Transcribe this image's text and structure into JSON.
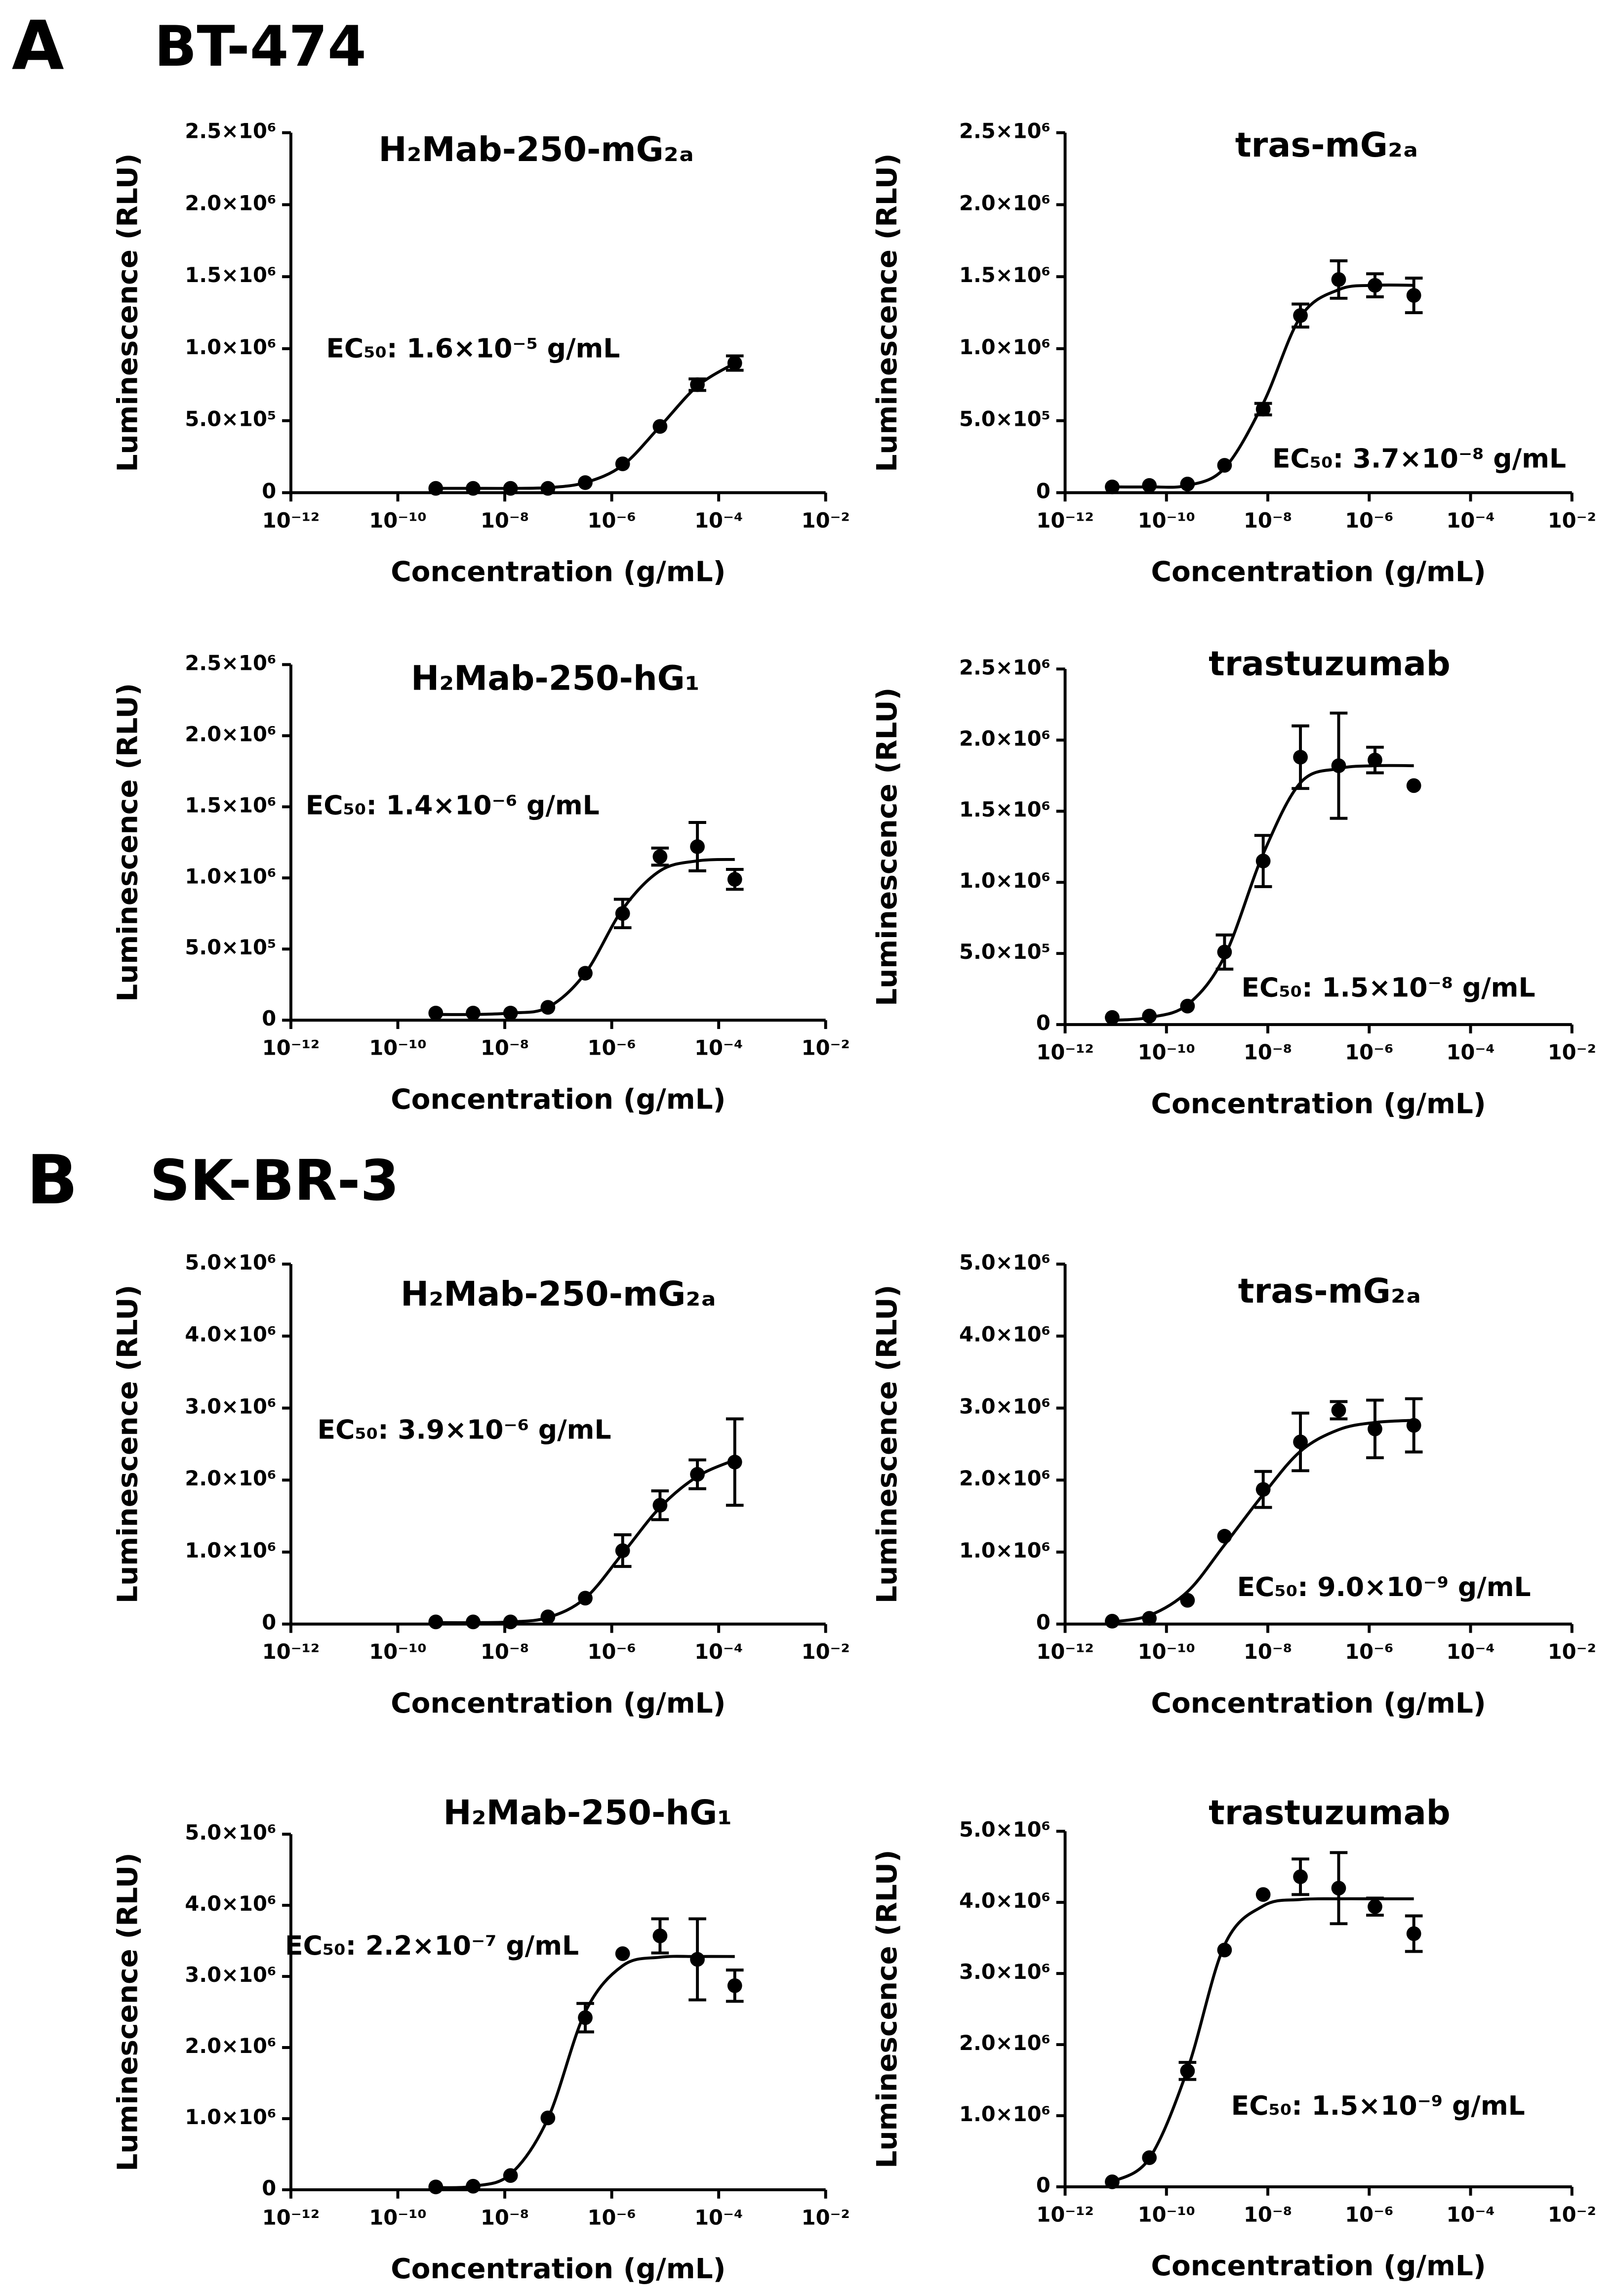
{
  "panels": [
    {
      "letter": "A",
      "title": "BT-474"
    },
    {
      "letter": "B",
      "title": "SK-BR-3"
    }
  ],
  "chart_data": [
    {
      "type": "scatter",
      "title": "H₂Mab-250-mG₂ₐ",
      "annotation": "EC₅₀: 1.6×10⁻⁵ g/mL",
      "xlabel": "Concentration (g/mL)",
      "ylabel": "Luminescence (RLU)",
      "xscale": "log",
      "color": "#000000",
      "x": [
        5.12e-10,
        2.56e-09,
        1.28e-08,
        6.4e-08,
        3.2e-07,
        1.6e-06,
        8e-06,
        4e-05,
        0.0002
      ],
      "values": [
        30000,
        30000,
        30000,
        30000,
        70000,
        200000,
        460000,
        750000,
        900000
      ],
      "errors": [
        0,
        0,
        0,
        0,
        0,
        0,
        0,
        40000,
        50000
      ],
      "fit": [
        30000,
        30000,
        30000,
        35000,
        70000,
        190000,
        460000,
        740000,
        900000
      ],
      "xlim": [
        1e-12,
        0.01
      ],
      "xticks": [
        {
          "value": 1e-12,
          "label": "10⁻¹²"
        },
        {
          "value": 1e-10,
          "label": "10⁻¹⁰"
        },
        {
          "value": 1e-08,
          "label": "10⁻⁸"
        },
        {
          "value": 1e-06,
          "label": "10⁻⁶"
        },
        {
          "value": 0.0001,
          "label": "10⁻⁴"
        },
        {
          "value": 0.01,
          "label": "10⁻²"
        }
      ],
      "ylim": [
        0,
        2500000
      ],
      "yticks": [
        0,
        {
          "value": 500000,
          "label": "5.0×10⁵"
        },
        {
          "value": 1000000,
          "label": "1.0×10⁶"
        },
        {
          "value": 1500000,
          "label": "1.5×10⁶"
        },
        {
          "value": 2000000,
          "label": "2.0×10⁶"
        },
        {
          "value": 2500000,
          "label": "2.5×10⁶"
        }
      ]
    },
    {
      "type": "scatter",
      "title": "tras-mG₂ₐ",
      "annotation": "EC₅₀: 3.7×10⁻⁸ g/mL",
      "xlabel": "Concentration (g/mL)",
      "ylabel": "Luminescence (RLU)",
      "xscale": "log",
      "color": "#000000",
      "x": [
        8.5e-12,
        4.6e-11,
        2.6e-10,
        1.4e-09,
        8.1e-09,
        4.4e-08,
        2.5e-07,
        1.3e-06,
        7.6e-06
      ],
      "values": [
        40000,
        50000,
        60000,
        190000,
        580000,
        1230000,
        1480000,
        1440000,
        1370000
      ],
      "errors": [
        0,
        0,
        0,
        0,
        40000,
        80000,
        130000,
        80000,
        120000
      ],
      "fit": [
        40000,
        40000,
        50000,
        170000,
        620000,
        1220000,
        1410000,
        1440000,
        1440000
      ],
      "xlim": [
        1e-12,
        0.01
      ],
      "xticks": [
        {
          "value": 1e-12,
          "label": "10⁻¹²"
        },
        {
          "value": 1e-10,
          "label": "10⁻¹⁰"
        },
        {
          "value": 1e-08,
          "label": "10⁻⁸"
        },
        {
          "value": 1e-06,
          "label": "10⁻⁶"
        },
        {
          "value": 0.0001,
          "label": "10⁻⁴"
        },
        {
          "value": 0.01,
          "label": "10⁻²"
        }
      ],
      "ylim": [
        0,
        2500000
      ],
      "yticks": [
        0,
        {
          "value": 500000,
          "label": "5.0×10⁵"
        },
        {
          "value": 1000000,
          "label": "1.0×10⁶"
        },
        {
          "value": 1500000,
          "label": "1.5×10⁶"
        },
        {
          "value": 2000000,
          "label": "2.0×10⁶"
        },
        {
          "value": 2500000,
          "label": "2.5×10⁶"
        }
      ]
    },
    {
      "type": "scatter",
      "title": "H₂Mab-250-hG₁",
      "annotation": "EC₅₀: 1.4×10⁻⁶ g/mL",
      "xlabel": "Concentration (g/mL)",
      "ylabel": "Luminescence (RLU)",
      "xscale": "log",
      "color": "#000000",
      "x": [
        5.12e-10,
        2.56e-09,
        1.28e-08,
        6.4e-08,
        3.2e-07,
        1.6e-06,
        8e-06,
        4e-05,
        0.0002
      ],
      "values": [
        50000,
        50000,
        50000,
        90000,
        330000,
        750000,
        1150000,
        1220000,
        990000
      ],
      "errors": [
        0,
        0,
        0,
        0,
        0,
        100000,
        60000,
        170000,
        70000
      ],
      "fit": [
        40000,
        40000,
        50000,
        90000,
        330000,
        780000,
        1050000,
        1120000,
        1130000
      ],
      "xlim": [
        1e-12,
        0.01
      ],
      "xticks": [
        {
          "value": 1e-12,
          "label": "10⁻¹²"
        },
        {
          "value": 1e-10,
          "label": "10⁻¹⁰"
        },
        {
          "value": 1e-08,
          "label": "10⁻⁸"
        },
        {
          "value": 1e-06,
          "label": "10⁻⁶"
        },
        {
          "value": 0.0001,
          "label": "10⁻⁴"
        },
        {
          "value": 0.01,
          "label": "10⁻²"
        }
      ],
      "ylim": [
        0,
        2500000
      ],
      "yticks": [
        0,
        {
          "value": 500000,
          "label": "5.0×10⁵"
        },
        {
          "value": 1000000,
          "label": "1.0×10⁶"
        },
        {
          "value": 1500000,
          "label": "1.5×10⁶"
        },
        {
          "value": 2000000,
          "label": "2.0×10⁶"
        },
        {
          "value": 2500000,
          "label": "2.5×10⁶"
        }
      ]
    },
    {
      "type": "scatter",
      "title": "trastuzumab",
      "annotation": "EC₅₀: 1.5×10⁻⁸ g/mL",
      "xlabel": "Concentration (g/mL)",
      "ylabel": "Luminescence (RLU)",
      "xscale": "log",
      "color": "#000000",
      "x": [
        8.5e-12,
        4.6e-11,
        2.6e-10,
        1.4e-09,
        8.1e-09,
        4.4e-08,
        2.5e-07,
        1.3e-06,
        7.6e-06
      ],
      "values": [
        50000,
        60000,
        130000,
        510000,
        1150000,
        1880000,
        1820000,
        1860000,
        1680000
      ],
      "errors": [
        0,
        0,
        0,
        120000,
        180000,
        220000,
        370000,
        90000,
        0
      ],
      "fit": [
        30000,
        50000,
        140000,
        480000,
        1200000,
        1700000,
        1800000,
        1820000,
        1820000
      ],
      "xlim": [
        1e-12,
        0.01
      ],
      "xticks": [
        {
          "value": 1e-12,
          "label": "10⁻¹²"
        },
        {
          "value": 1e-10,
          "label": "10⁻¹⁰"
        },
        {
          "value": 1e-08,
          "label": "10⁻⁸"
        },
        {
          "value": 1e-06,
          "label": "10⁻⁶"
        },
        {
          "value": 0.0001,
          "label": "10⁻⁴"
        },
        {
          "value": 0.01,
          "label": "10⁻²"
        }
      ],
      "ylim": [
        0,
        2500000
      ],
      "yticks": [
        0,
        {
          "value": 500000,
          "label": "5.0×10⁵"
        },
        {
          "value": 1000000,
          "label": "1.0×10⁶"
        },
        {
          "value": 1500000,
          "label": "1.5×10⁶"
        },
        {
          "value": 2000000,
          "label": "2.0×10⁶"
        },
        {
          "value": 2500000,
          "label": "2.5×10⁶"
        }
      ]
    },
    {
      "type": "scatter",
      "title": "H₂Mab-250-mG₂ₐ",
      "annotation": "EC₅₀: 3.9×10⁻⁶ g/mL",
      "xlabel": "Concentration (g/mL)",
      "ylabel": "Luminescence (RLU)",
      "xscale": "log",
      "color": "#000000",
      "x": [
        5.12e-10,
        2.56e-09,
        1.28e-08,
        6.4e-08,
        3.2e-07,
        1.6e-06,
        8e-06,
        4e-05,
        0.0002
      ],
      "values": [
        30000,
        30000,
        30000,
        100000,
        360000,
        1020000,
        1650000,
        2080000,
        2250000
      ],
      "errors": [
        0,
        0,
        0,
        0,
        0,
        220000,
        200000,
        200000,
        600000
      ],
      "fit": [
        20000,
        20000,
        30000,
        90000,
        360000,
        980000,
        1620000,
        2050000,
        2280000
      ],
      "xlim": [
        1e-12,
        0.01
      ],
      "xticks": [
        {
          "value": 1e-12,
          "label": "10⁻¹²"
        },
        {
          "value": 1e-10,
          "label": "10⁻¹⁰"
        },
        {
          "value": 1e-08,
          "label": "10⁻⁸"
        },
        {
          "value": 1e-06,
          "label": "10⁻⁶"
        },
        {
          "value": 0.0001,
          "label": "10⁻⁴"
        },
        {
          "value": 0.01,
          "label": "10⁻²"
        }
      ],
      "ylim": [
        0,
        5000000
      ],
      "yticks": [
        0,
        {
          "value": 1000000,
          "label": "1.0×10⁶"
        },
        {
          "value": 2000000,
          "label": "2.0×10⁶"
        },
        {
          "value": 3000000,
          "label": "3.0×10⁶"
        },
        {
          "value": 4000000,
          "label": "4.0×10⁶"
        },
        {
          "value": 5000000,
          "label": "5.0×10⁶"
        }
      ]
    },
    {
      "type": "scatter",
      "title": "tras-mG₂ₐ",
      "annotation": "EC₅₀: 9.0×10⁻⁹ g/mL",
      "xlabel": "Concentration (g/mL)",
      "ylabel": "Luminescence (RLU)",
      "xscale": "log",
      "color": "#000000",
      "x": [
        8.5e-12,
        4.6e-11,
        2.6e-10,
        1.4e-09,
        8.1e-09,
        4.4e-08,
        2.5e-07,
        1.3e-06,
        7.6e-06
      ],
      "values": [
        40000,
        80000,
        330000,
        1220000,
        1870000,
        2530000,
        2970000,
        2710000,
        2760000
      ],
      "errors": [
        0,
        0,
        0,
        0,
        250000,
        400000,
        120000,
        400000,
        370000
      ],
      "fit": [
        30000,
        120000,
        450000,
        1100000,
        1800000,
        2400000,
        2700000,
        2800000,
        2830000
      ],
      "xlim": [
        1e-12,
        0.01
      ],
      "xticks": [
        {
          "value": 1e-12,
          "label": "10⁻¹²"
        },
        {
          "value": 1e-10,
          "label": "10⁻¹⁰"
        },
        {
          "value": 1e-08,
          "label": "10⁻⁸"
        },
        {
          "value": 1e-06,
          "label": "10⁻⁶"
        },
        {
          "value": 0.0001,
          "label": "10⁻⁴"
        },
        {
          "value": 0.01,
          "label": "10⁻²"
        }
      ],
      "ylim": [
        0,
        5000000
      ],
      "yticks": [
        0,
        {
          "value": 1000000,
          "label": "1.0×10⁶"
        },
        {
          "value": 2000000,
          "label": "2.0×10⁶"
        },
        {
          "value": 3000000,
          "label": "3.0×10⁶"
        },
        {
          "value": 4000000,
          "label": "4.0×10⁶"
        },
        {
          "value": 5000000,
          "label": "5.0×10⁶"
        }
      ]
    },
    {
      "type": "scatter",
      "title": "H₂Mab-250-hG₁",
      "annotation": "EC₅₀: 2.2×10⁻⁷ g/mL",
      "xlabel": "Concentration (g/mL)",
      "ylabel": "Luminescence (RLU)",
      "xscale": "log",
      "color": "#000000",
      "x": [
        5.12e-10,
        2.56e-09,
        1.28e-08,
        6.4e-08,
        3.2e-07,
        1.6e-06,
        8e-06,
        4e-05,
        0.0002
      ],
      "values": [
        40000,
        50000,
        200000,
        1010000,
        2420000,
        3320000,
        3570000,
        3240000,
        2870000
      ],
      "errors": [
        0,
        0,
        0,
        0,
        200000,
        0,
        240000,
        570000,
        220000
      ],
      "fit": [
        30000,
        50000,
        220000,
        1000000,
        2500000,
        3150000,
        3270000,
        3280000,
        3280000
      ],
      "xlim": [
        1e-12,
        0.01
      ],
      "xticks": [
        {
          "value": 1e-12,
          "label": "10⁻¹²"
        },
        {
          "value": 1e-10,
          "label": "10⁻¹⁰"
        },
        {
          "value": 1e-08,
          "label": "10⁻⁸"
        },
        {
          "value": 1e-06,
          "label": "10⁻⁶"
        },
        {
          "value": 0.0001,
          "label": "10⁻⁴"
        },
        {
          "value": 0.01,
          "label": "10⁻²"
        }
      ],
      "ylim": [
        0,
        5000000
      ],
      "yticks": [
        0,
        {
          "value": 1000000,
          "label": "1.0×10⁶"
        },
        {
          "value": 2000000,
          "label": "2.0×10⁶"
        },
        {
          "value": 3000000,
          "label": "3.0×10⁶"
        },
        {
          "value": 4000000,
          "label": "4.0×10⁶"
        },
        {
          "value": 5000000,
          "label": "5.0×10⁶"
        }
      ]
    },
    {
      "type": "scatter",
      "title": "trastuzumab",
      "annotation": "EC₅₀: 1.5×10⁻⁹ g/mL",
      "xlabel": "Concentration (g/mL)",
      "ylabel": "Luminescence (RLU)",
      "xscale": "log",
      "color": "#000000",
      "x": [
        8.5e-12,
        4.6e-11,
        2.6e-10,
        1.4e-09,
        8.1e-09,
        4.4e-08,
        2.5e-07,
        1.3e-06,
        7.6e-06
      ],
      "values": [
        70000,
        410000,
        1630000,
        3330000,
        4110000,
        4360000,
        4200000,
        3940000,
        3560000
      ],
      "errors": [
        0,
        0,
        120000,
        0,
        0,
        250000,
        500000,
        120000,
        250000
      ],
      "fit": [
        70000,
        400000,
        1650000,
        3400000,
        3950000,
        4040000,
        4050000,
        4050000,
        4050000
      ],
      "xlim": [
        1e-12,
        0.01
      ],
      "xticks": [
        {
          "value": 1e-12,
          "label": "10⁻¹²"
        },
        {
          "value": 1e-10,
          "label": "10⁻¹⁰"
        },
        {
          "value": 1e-08,
          "label": "10⁻⁸"
        },
        {
          "value": 1e-06,
          "label": "10⁻⁶"
        },
        {
          "value": 0.0001,
          "label": "10⁻⁴"
        },
        {
          "value": 0.01,
          "label": "10⁻²"
        }
      ],
      "ylim": [
        0,
        5000000
      ],
      "yticks": [
        0,
        {
          "value": 1000000,
          "label": "1.0×10⁶"
        },
        {
          "value": 2000000,
          "label": "2.0×10⁶"
        },
        {
          "value": 3000000,
          "label": "3.0×10⁶"
        },
        {
          "value": 4000000,
          "label": "4.0×10⁶"
        },
        {
          "value": 5000000,
          "label": "5.0×10⁶"
        }
      ]
    }
  ]
}
